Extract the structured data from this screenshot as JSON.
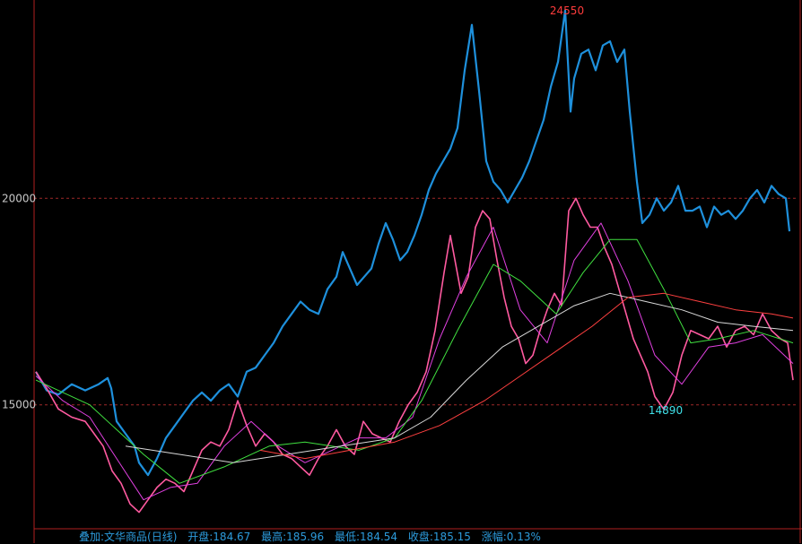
{
  "chart_data": {
    "type": "line",
    "ylim": [
      12000,
      24800
    ],
    "y_ticks": [
      15000,
      20000
    ],
    "grid": "dashed horizontal at y ticks",
    "annotations": {
      "high_label": "24550",
      "low_label": "14890"
    },
    "series": [
      {
        "key": "overlay",
        "color": "#1e90dc",
        "points": [
          [
            0,
            15800
          ],
          [
            12,
            15350
          ],
          [
            25,
            15250
          ],
          [
            40,
            15500
          ],
          [
            55,
            15350
          ],
          [
            70,
            15500
          ],
          [
            80,
            15650
          ],
          [
            84,
            15400
          ],
          [
            90,
            14600
          ],
          [
            100,
            14300
          ],
          [
            110,
            14000
          ],
          [
            115,
            13600
          ],
          [
            125,
            13300
          ],
          [
            135,
            13700
          ],
          [
            145,
            14200
          ],
          [
            155,
            14500
          ],
          [
            165,
            14800
          ],
          [
            175,
            15100
          ],
          [
            185,
            15300
          ],
          [
            195,
            15100
          ],
          [
            205,
            15350
          ],
          [
            215,
            15500
          ],
          [
            225,
            15200
          ],
          [
            235,
            15800
          ],
          [
            245,
            15900
          ],
          [
            255,
            16200
          ],
          [
            265,
            16500
          ],
          [
            275,
            16900
          ],
          [
            285,
            17200
          ],
          [
            295,
            17500
          ],
          [
            305,
            17300
          ],
          [
            315,
            17200
          ],
          [
            320,
            17500
          ],
          [
            325,
            17800
          ],
          [
            335,
            18100
          ],
          [
            342,
            18700
          ],
          [
            350,
            18300
          ],
          [
            358,
            17900
          ],
          [
            366,
            18100
          ],
          [
            374,
            18300
          ],
          [
            382,
            18900
          ],
          [
            390,
            19400
          ],
          [
            398,
            19000
          ],
          [
            406,
            18500
          ],
          [
            414,
            18700
          ],
          [
            422,
            19100
          ],
          [
            430,
            19600
          ],
          [
            438,
            20200
          ],
          [
            446,
            20600
          ],
          [
            454,
            20900
          ],
          [
            462,
            21200
          ],
          [
            470,
            21700
          ],
          [
            478,
            23100
          ],
          [
            486,
            24200
          ],
          [
            494,
            22600
          ],
          [
            502,
            20900
          ],
          [
            510,
            20400
          ],
          [
            518,
            20200
          ],
          [
            526,
            19900
          ],
          [
            534,
            20200
          ],
          [
            542,
            20500
          ],
          [
            550,
            20900
          ],
          [
            558,
            21400
          ],
          [
            566,
            21900
          ],
          [
            574,
            22700
          ],
          [
            582,
            23300
          ],
          [
            590,
            24550
          ],
          [
            596,
            22100
          ],
          [
            600,
            22900
          ],
          [
            608,
            23500
          ],
          [
            616,
            23600
          ],
          [
            624,
            23100
          ],
          [
            632,
            23700
          ],
          [
            640,
            23800
          ],
          [
            648,
            23300
          ],
          [
            656,
            23600
          ],
          [
            662,
            22100
          ],
          [
            670,
            20400
          ],
          [
            676,
            19400
          ],
          [
            684,
            19600
          ],
          [
            692,
            20000
          ],
          [
            700,
            19700
          ],
          [
            708,
            19900
          ],
          [
            716,
            20300
          ],
          [
            724,
            19700
          ],
          [
            732,
            19700
          ],
          [
            740,
            19800
          ],
          [
            748,
            19300
          ],
          [
            756,
            19800
          ],
          [
            764,
            19600
          ],
          [
            772,
            19700
          ],
          [
            780,
            19500
          ],
          [
            788,
            19700
          ],
          [
            796,
            20000
          ],
          [
            804,
            20200
          ],
          [
            812,
            19900
          ],
          [
            820,
            20300
          ],
          [
            828,
            20100
          ],
          [
            836,
            20000
          ],
          [
            840,
            19200
          ]
        ]
      },
      {
        "key": "kline",
        "color": "#ff5aa0",
        "points": [
          [
            0,
            15800
          ],
          [
            12,
            15400
          ],
          [
            25,
            14900
          ],
          [
            40,
            14700
          ],
          [
            55,
            14600
          ],
          [
            65,
            14300
          ],
          [
            75,
            14000
          ],
          [
            85,
            13400
          ],
          [
            95,
            13100
          ],
          [
            105,
            12600
          ],
          [
            115,
            12400
          ],
          [
            125,
            12700
          ],
          [
            135,
            13000
          ],
          [
            145,
            13200
          ],
          [
            155,
            13100
          ],
          [
            165,
            12900
          ],
          [
            175,
            13400
          ],
          [
            185,
            13900
          ],
          [
            195,
            14100
          ],
          [
            205,
            14000
          ],
          [
            215,
            14400
          ],
          [
            225,
            15100
          ],
          [
            235,
            14500
          ],
          [
            245,
            14000
          ],
          [
            255,
            14300
          ],
          [
            265,
            14100
          ],
          [
            275,
            13800
          ],
          [
            285,
            13700
          ],
          [
            295,
            13500
          ],
          [
            305,
            13300
          ],
          [
            315,
            13700
          ],
          [
            325,
            14000
          ],
          [
            335,
            14400
          ],
          [
            345,
            14000
          ],
          [
            355,
            13800
          ],
          [
            365,
            14600
          ],
          [
            375,
            14300
          ],
          [
            385,
            14200
          ],
          [
            395,
            14100
          ],
          [
            405,
            14600
          ],
          [
            415,
            15000
          ],
          [
            425,
            15300
          ],
          [
            435,
            15800
          ],
          [
            445,
            16800
          ],
          [
            455,
            18200
          ],
          [
            462,
            19100
          ],
          [
            468,
            18400
          ],
          [
            474,
            17700
          ],
          [
            482,
            18100
          ],
          [
            490,
            19300
          ],
          [
            498,
            19700
          ],
          [
            506,
            19500
          ],
          [
            514,
            18500
          ],
          [
            522,
            17600
          ],
          [
            530,
            16900
          ],
          [
            538,
            16600
          ],
          [
            546,
            16000
          ],
          [
            554,
            16200
          ],
          [
            562,
            16800
          ],
          [
            570,
            17300
          ],
          [
            578,
            17700
          ],
          [
            586,
            17400
          ],
          [
            594,
            19700
          ],
          [
            602,
            20000
          ],
          [
            610,
            19600
          ],
          [
            618,
            19300
          ],
          [
            626,
            19300
          ],
          [
            634,
            18800
          ],
          [
            642,
            18400
          ],
          [
            650,
            17800
          ],
          [
            658,
            17200
          ],
          [
            666,
            16600
          ],
          [
            674,
            16200
          ],
          [
            682,
            15800
          ],
          [
            690,
            15200
          ],
          [
            700,
            14890
          ],
          [
            710,
            15300
          ],
          [
            720,
            16200
          ],
          [
            730,
            16800
          ],
          [
            740,
            16700
          ],
          [
            750,
            16600
          ],
          [
            760,
            16900
          ],
          [
            770,
            16400
          ],
          [
            780,
            16800
          ],
          [
            790,
            16900
          ],
          [
            800,
            16700
          ],
          [
            810,
            17200
          ],
          [
            820,
            16800
          ],
          [
            830,
            16600
          ],
          [
            838,
            16500
          ],
          [
            844,
            15600
          ]
        ]
      },
      {
        "key": "ma-short",
        "color": "#e040e0",
        "points": [
          [
            0,
            15700
          ],
          [
            30,
            15100
          ],
          [
            60,
            14700
          ],
          [
            90,
            13700
          ],
          [
            120,
            12700
          ],
          [
            150,
            13000
          ],
          [
            180,
            13100
          ],
          [
            210,
            14000
          ],
          [
            240,
            14600
          ],
          [
            270,
            14000
          ],
          [
            300,
            13600
          ],
          [
            330,
            13900
          ],
          [
            360,
            14200
          ],
          [
            390,
            14200
          ],
          [
            420,
            14700
          ],
          [
            450,
            16600
          ],
          [
            480,
            18100
          ],
          [
            510,
            19300
          ],
          [
            540,
            17300
          ],
          [
            570,
            16500
          ],
          [
            600,
            18500
          ],
          [
            630,
            19400
          ],
          [
            660,
            18000
          ],
          [
            690,
            16200
          ],
          [
            720,
            15500
          ],
          [
            750,
            16400
          ],
          [
            780,
            16500
          ],
          [
            810,
            16700
          ],
          [
            844,
            16000
          ]
        ]
      },
      {
        "key": "ma-mid",
        "color": "#40e040",
        "points": [
          [
            0,
            15600
          ],
          [
            60,
            15000
          ],
          [
            120,
            13800
          ],
          [
            160,
            13100
          ],
          [
            210,
            13500
          ],
          [
            260,
            14000
          ],
          [
            300,
            14100
          ],
          [
            360,
            13900
          ],
          [
            400,
            14200
          ],
          [
            430,
            15100
          ],
          [
            470,
            16800
          ],
          [
            510,
            18400
          ],
          [
            540,
            18000
          ],
          [
            580,
            17200
          ],
          [
            610,
            18200
          ],
          [
            640,
            19000
          ],
          [
            670,
            19000
          ],
          [
            700,
            17800
          ],
          [
            730,
            16500
          ],
          [
            760,
            16600
          ],
          [
            800,
            16800
          ],
          [
            844,
            16500
          ]
        ]
      },
      {
        "key": "ma-long",
        "color": "#d8d8d8",
        "points": [
          [
            100,
            14000
          ],
          [
            160,
            13800
          ],
          [
            220,
            13600
          ],
          [
            280,
            13800
          ],
          [
            340,
            14000
          ],
          [
            400,
            14200
          ],
          [
            440,
            14700
          ],
          [
            480,
            15600
          ],
          [
            520,
            16400
          ],
          [
            560,
            16900
          ],
          [
            600,
            17400
          ],
          [
            640,
            17700
          ],
          [
            680,
            17500
          ],
          [
            720,
            17300
          ],
          [
            760,
            17000
          ],
          [
            800,
            16900
          ],
          [
            844,
            16800
          ]
        ]
      },
      {
        "key": "ma-longest",
        "color": "#ff4040",
        "points": [
          [
            250,
            13900
          ],
          [
            300,
            13700
          ],
          [
            350,
            13900
          ],
          [
            400,
            14100
          ],
          [
            450,
            14500
          ],
          [
            500,
            15100
          ],
          [
            540,
            15700
          ],
          [
            580,
            16300
          ],
          [
            620,
            16900
          ],
          [
            660,
            17600
          ],
          [
            700,
            17700
          ],
          [
            740,
            17500
          ],
          [
            780,
            17300
          ],
          [
            820,
            17200
          ],
          [
            844,
            17100
          ]
        ]
      }
    ]
  },
  "status_bar": {
    "overlay_name": "叠加:文华商品(日线)",
    "open": "开盘:184.67",
    "high": "最高:185.96",
    "low": "最低:184.54",
    "close": "收盘:185.15",
    "change": "涨幅:0.13%"
  }
}
